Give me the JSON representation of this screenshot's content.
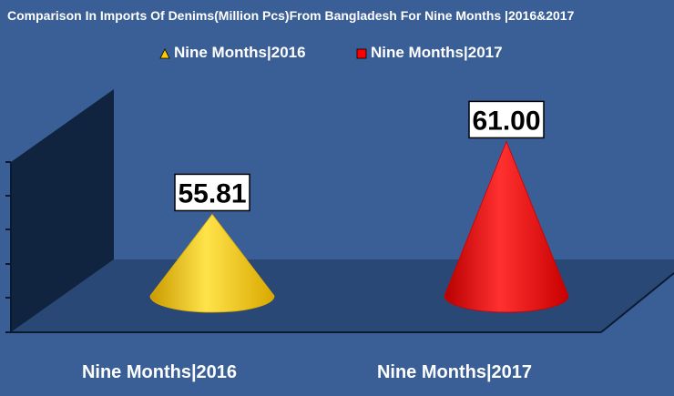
{
  "chart_data": {
    "type": "bar",
    "shape": "cone",
    "title": "Comparison In Imports Of Denims(Million Pcs)From Bangladesh For Nine Months  |2016&2017",
    "categories": [
      "Nine Months|2016",
      "Nine Months|2017"
    ],
    "series": [
      {
        "name": "Nine Months|2016",
        "color": "#ffcc00",
        "values": [
          55.81,
          null
        ]
      },
      {
        "name": "Nine Months|2017",
        "color": "#ff0000",
        "values": [
          null,
          61.0
        ]
      }
    ],
    "data_labels": [
      "55.81",
      "61.00"
    ],
    "legend_position": "top",
    "ylim": [
      50,
      62
    ],
    "grid": false
  }
}
